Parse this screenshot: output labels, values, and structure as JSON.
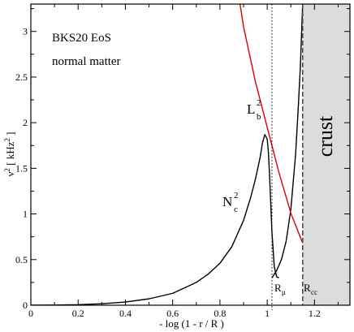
{
  "chart_data": {
    "type": "line",
    "xlabel": "- log (1 - r / R )",
    "ylabel": "ν² [ kHz² ]",
    "xlim": [
      0,
      1.35
    ],
    "ylim": [
      0,
      3.3
    ],
    "xticks": [
      "0",
      "0.2",
      "0.4",
      "0.6",
      "0.8",
      "1",
      "1.2"
    ],
    "xtick_values": [
      0,
      0.2,
      0.4,
      0.6,
      0.8,
      1.0,
      1.2
    ],
    "yticks": [
      "0",
      "0.5",
      "1",
      "1.5",
      "2",
      "2.5",
      "3"
    ],
    "ytick_values": [
      0,
      0.5,
      1.0,
      1.5,
      2.0,
      2.5,
      3.0
    ],
    "annotations": {
      "eos": "BKS20 EoS",
      "matter": "normal matter",
      "crust": "crust",
      "R_mu": "R",
      "R_mu_sub": "μ",
      "R_cc": "R",
      "R_cc_sub": "cc",
      "N_label": "N",
      "N_sub": "c",
      "N_sup": "2",
      "L_label": "L",
      "L_sub": "b",
      "L_sup": "2"
    },
    "vlines": {
      "R_mu": 1.02,
      "R_cc": 1.15
    },
    "crust_region": [
      1.15,
      1.35
    ],
    "series": [
      {
        "color": "#000000",
        "x": [
          0.0,
          0.1,
          0.2,
          0.3,
          0.4,
          0.5,
          0.6,
          0.7,
          0.75,
          0.8,
          0.85,
          0.9,
          0.93,
          0.95,
          0.97,
          0.98,
          0.99,
          1.0,
          1.005,
          1.01,
          1.02,
          1.03,
          1.04,
          1.05
        ],
        "y": [
          0.0,
          0.002,
          0.006,
          0.016,
          0.035,
          0.07,
          0.13,
          0.25,
          0.34,
          0.46,
          0.64,
          0.93,
          1.18,
          1.38,
          1.62,
          1.78,
          1.87,
          1.82,
          1.68,
          1.42,
          0.8,
          0.42,
          0.31,
          0.3
        ]
      },
      {
        "color": "#000000",
        "x": [
          1.02,
          1.04,
          1.06,
          1.08,
          1.1,
          1.12,
          1.13,
          1.14,
          1.15
        ],
        "y": [
          0.3,
          0.38,
          0.5,
          0.7,
          1.05,
          1.65,
          2.1,
          2.6,
          3.3
        ]
      },
      {
        "color": "#e00000",
        "x": [
          0.885,
          0.9,
          0.95,
          1.0,
          1.05,
          1.1,
          1.15
        ],
        "y": [
          3.3,
          3.05,
          2.45,
          1.95,
          1.45,
          1.01,
          0.68
        ]
      }
    ],
    "grid": false
  }
}
